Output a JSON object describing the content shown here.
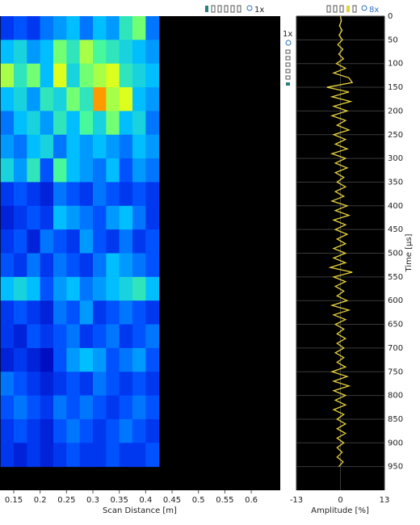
{
  "toolbar": {
    "bscan_zoom": "1x",
    "ascan_zoom": "8x",
    "side_zoom": "1x"
  },
  "chart_data": [
    {
      "type": "heatmap",
      "x_label": "Scan Distance [m]",
      "xlim": [
        0.124,
        0.655
      ],
      "xticks": [
        0.15,
        0.2,
        0.25,
        0.3,
        0.35,
        0.4,
        0.45,
        0.5,
        0.55,
        0.6
      ],
      "ylim": [
        0,
        1000
      ],
      "zlim": [
        0,
        1
      ],
      "colorscale": [
        "#000000",
        "#0000b4",
        "#0046ff",
        "#00beff",
        "#50ff90",
        "#ffff00",
        "#ff0000"
      ],
      "xbins": [
        0.125,
        0.15,
        0.175,
        0.2,
        0.225,
        0.25,
        0.275,
        0.3,
        0.325,
        0.35,
        0.375,
        0.4,
        0.425
      ],
      "ybins": [
        0,
        50,
        100,
        150,
        200,
        250,
        300,
        350,
        400,
        450,
        500,
        550,
        600,
        650,
        700,
        750,
        800,
        850,
        900,
        950
      ],
      "z": [
        [
          0.3,
          0.35,
          0.3,
          0.4,
          0.45,
          0.5,
          0.4,
          0.5,
          0.45,
          0.6,
          0.7,
          0.4
        ],
        [
          0.5,
          0.55,
          0.45,
          0.5,
          0.7,
          0.6,
          0.75,
          0.65,
          0.6,
          0.55,
          0.5,
          0.45
        ],
        [
          0.75,
          0.6,
          0.7,
          0.5,
          0.8,
          0.55,
          0.7,
          0.75,
          0.8,
          0.6,
          0.55,
          0.5
        ],
        [
          0.5,
          0.55,
          0.45,
          0.6,
          0.55,
          0.7,
          0.6,
          0.9,
          0.75,
          0.8,
          0.5,
          0.45
        ],
        [
          0.4,
          0.5,
          0.55,
          0.45,
          0.6,
          0.5,
          0.65,
          0.55,
          0.7,
          0.5,
          0.55,
          0.4
        ],
        [
          0.45,
          0.4,
          0.5,
          0.55,
          0.4,
          0.5,
          0.45,
          0.5,
          0.45,
          0.4,
          0.5,
          0.45
        ],
        [
          0.55,
          0.45,
          0.6,
          0.35,
          0.65,
          0.5,
          0.45,
          0.4,
          0.5,
          0.35,
          0.45,
          0.4
        ],
        [
          0.3,
          0.35,
          0.3,
          0.25,
          0.4,
          0.35,
          0.3,
          0.4,
          0.35,
          0.3,
          0.35,
          0.3
        ],
        [
          0.25,
          0.3,
          0.35,
          0.3,
          0.5,
          0.45,
          0.4,
          0.35,
          0.45,
          0.5,
          0.4,
          0.3
        ],
        [
          0.3,
          0.35,
          0.25,
          0.4,
          0.35,
          0.3,
          0.45,
          0.35,
          0.3,
          0.4,
          0.3,
          0.35
        ],
        [
          0.35,
          0.3,
          0.4,
          0.3,
          0.4,
          0.35,
          0.3,
          0.4,
          0.5,
          0.45,
          0.4,
          0.35
        ],
        [
          0.5,
          0.55,
          0.5,
          0.35,
          0.45,
          0.5,
          0.4,
          0.45,
          0.5,
          0.55,
          0.6,
          0.5
        ],
        [
          0.3,
          0.35,
          0.3,
          0.25,
          0.4,
          0.35,
          0.45,
          0.3,
          0.35,
          0.4,
          0.35,
          0.3
        ],
        [
          0.3,
          0.25,
          0.35,
          0.3,
          0.35,
          0.4,
          0.3,
          0.35,
          0.4,
          0.3,
          0.35,
          0.4
        ],
        [
          0.25,
          0.3,
          0.25,
          0.2,
          0.35,
          0.45,
          0.5,
          0.45,
          0.35,
          0.4,
          0.45,
          0.35
        ],
        [
          0.4,
          0.35,
          0.3,
          0.25,
          0.3,
          0.35,
          0.3,
          0.4,
          0.35,
          0.3,
          0.35,
          0.3
        ],
        [
          0.35,
          0.4,
          0.35,
          0.3,
          0.4,
          0.35,
          0.4,
          0.35,
          0.3,
          0.35,
          0.4,
          0.35
        ],
        [
          0.3,
          0.35,
          0.3,
          0.25,
          0.35,
          0.4,
          0.35,
          0.3,
          0.35,
          0.4,
          0.35,
          0.3
        ],
        [
          0.3,
          0.25,
          0.3,
          0.25,
          0.3,
          0.35,
          0.3,
          0.3,
          0.35,
          0.3,
          0.3,
          0.35
        ]
      ]
    },
    {
      "type": "line",
      "orientation": "vertical",
      "x_label": "Amplitude [%]",
      "y_label": "Time [µs]",
      "color": "#e6d23c",
      "grid": true,
      "xlim": [
        -13,
        13
      ],
      "xticks": [
        -13,
        0,
        13
      ],
      "ylim": [
        0,
        1000
      ],
      "yticks": [
        0,
        50,
        100,
        150,
        200,
        250,
        300,
        350,
        400,
        450,
        500,
        550,
        600,
        650,
        700,
        750,
        800,
        850,
        900,
        950
      ],
      "x": [
        0,
        10,
        20,
        30,
        40,
        50,
        60,
        70,
        80,
        90,
        100,
        110,
        120,
        130,
        140,
        150,
        160,
        170,
        180,
        190,
        200,
        210,
        220,
        230,
        240,
        250,
        260,
        270,
        280,
        290,
        300,
        310,
        320,
        330,
        340,
        350,
        360,
        370,
        380,
        390,
        400,
        410,
        420,
        430,
        440,
        450,
        460,
        470,
        480,
        490,
        500,
        510,
        520,
        530,
        540,
        550,
        560,
        570,
        580,
        590,
        600,
        610,
        620,
        630,
        640,
        650,
        660,
        670,
        680,
        690,
        700,
        710,
        720,
        730,
        740,
        750,
        760,
        770,
        780,
        790,
        800,
        810,
        820,
        830,
        840,
        850,
        860,
        870,
        880,
        890,
        900,
        910,
        920,
        930,
        940,
        950
      ],
      "values": [
        0,
        0.3,
        -0.3,
        0.5,
        -0.4,
        0.6,
        -0.8,
        0.7,
        -0.5,
        0.9,
        -1.2,
        1.5,
        -2,
        2.5,
        3.5,
        -4,
        2.5,
        -2.5,
        3,
        -2,
        2,
        -2.5,
        1.5,
        -1,
        2.5,
        -2,
        1.5,
        -1.5,
        2,
        -2.5,
        1.5,
        -1.5,
        2,
        -1.5,
        1,
        -1,
        1.5,
        -1.5,
        1,
        -2.5,
        2,
        -1.5,
        2.5,
        -2,
        1.5,
        -1.5,
        2,
        -1,
        1.5,
        -2,
        1.5,
        -2,
        1.5,
        -3,
        3.5,
        -2,
        1.5,
        -1.5,
        1,
        -1,
        2,
        -2.5,
        2.5,
        -2,
        1.5,
        -1.5,
        1,
        -1,
        1.5,
        -1,
        1,
        -1.5,
        1,
        -1,
        1.5,
        -2.5,
        2,
        -2,
        2.5,
        -2,
        1.5,
        -1.5,
        1.5,
        -2,
        1,
        -1,
        1.5,
        -1,
        1.5,
        -1,
        1,
        -1,
        0.5,
        -1,
        0.8,
        -0.5
      ]
    }
  ]
}
